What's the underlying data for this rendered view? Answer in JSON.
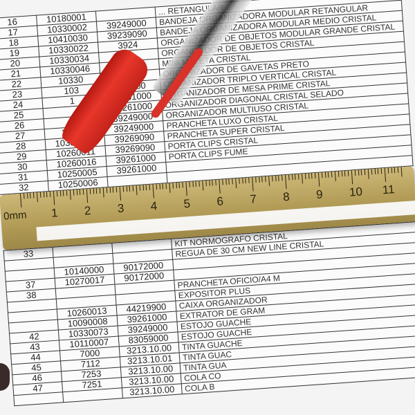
{
  "table": {
    "rows": [
      {
        "n": "16",
        "code": "10180001",
        "ncm": "",
        "desc": "... retangular ..."
      },
      {
        "n": "17",
        "code": "10330002",
        "ncm": "39249000",
        "desc": "Bandeja organizadora modular retangular"
      },
      {
        "n": "18",
        "code": "10410030",
        "ncm": "39239090",
        "desc": "Bandeja organizadora modular medio cristal"
      },
      {
        "n": "19",
        "code": "10330022",
        "ncm": "3924",
        "desc": "Organizador de objetos modular grande cristal"
      },
      {
        "n": "20",
        "code": "10330034",
        "ncm": "39",
        "desc": "Organizador de objetos cristal"
      },
      {
        "n": "21",
        "code": "10330046",
        "ncm": "",
        "desc": "Mini maleta cristal"
      },
      {
        "n": "22",
        "code": "10330",
        "ncm": "1000",
        "desc": "Organizador de gavetas preto"
      },
      {
        "n": "23",
        "code": "103",
        "ncm": "261000",
        "desc": "Organizador triplo vertical cristal"
      },
      {
        "n": "24",
        "code": "1",
        "ncm": "39261000",
        "desc": "Organizador de mesa prime cristal"
      },
      {
        "n": "25",
        "code": "",
        "ncm": "39261000",
        "desc": "Organizador diagonal cristal selado"
      },
      {
        "n": "26",
        "code": "38",
        "ncm": "39249000",
        "desc": "Organizador multiuso cristal"
      },
      {
        "n": "27",
        "code": "30018",
        "ncm": "39249000",
        "desc": "Prancheta luxo cristal"
      },
      {
        "n": "28",
        "code": "10330068",
        "ncm": "39269090",
        "desc": "Prancheta super cristal"
      },
      {
        "n": "29",
        "code": "10260011",
        "ncm": "39269090",
        "desc": "Porta clips cristal"
      },
      {
        "n": "30",
        "code": "10260016",
        "ncm": "39261000",
        "desc": "Porta clips fume"
      },
      {
        "n": "31",
        "code": "10250005",
        "ncm": "39261000",
        "desc": ""
      },
      {
        "n": "32",
        "code": "10250006",
        "ncm": "",
        "desc": ""
      },
      {
        "n": "33",
        "code": "",
        "ncm": "",
        "desc": "Kit normografo cristal"
      },
      {
        "n": "",
        "code": "",
        "ncm": "",
        "desc": "Regua de 30 cm new line cristal"
      },
      {
        "n": "",
        "code": "10140000",
        "ncm": "90172000",
        "desc": ""
      },
      {
        "n": "37",
        "code": "10270017",
        "ncm": "90172000",
        "desc": ""
      },
      {
        "n": "38",
        "code": "",
        "ncm": "",
        "desc": "Prancheta oficio/A4 M"
      },
      {
        "n": "",
        "code": "",
        "ncm": "",
        "desc": "Expositor plus"
      },
      {
        "n": "",
        "code": "10260013",
        "ncm": "44219900",
        "desc": "Caixa organizador"
      },
      {
        "n": "",
        "code": "10090008",
        "ncm": "39261000",
        "desc": "Extrator de gram"
      },
      {
        "n": "42",
        "code": "10330073",
        "ncm": "39249000",
        "desc": "Estojo guache"
      },
      {
        "n": "43",
        "code": "10110007",
        "ncm": "83059000",
        "desc": "Estojo guache"
      },
      {
        "n": "44",
        "code": "7000",
        "ncm": "3213.10.00",
        "desc": "Tinta guache"
      },
      {
        "n": "45",
        "code": "7112",
        "ncm": "3213.10.01",
        "desc": "Tinta guac"
      },
      {
        "n": "46",
        "code": "7253",
        "ncm": "3213.10.00",
        "desc": "Tinta gua"
      },
      {
        "n": "47",
        "code": "7251",
        "ncm": "3213.10.00",
        "desc": "Cola co"
      },
      {
        "n": "",
        "code": "",
        "ncm": "3213.10.00",
        "desc": "Cola b"
      }
    ]
  },
  "ruler": {
    "unit": "mm",
    "zero": "0",
    "numbers": [
      "1",
      "2",
      "3",
      "4",
      "5",
      "6",
      "7",
      "8",
      "9",
      "10",
      "11"
    ],
    "color": "#b09a55"
  },
  "pen": {
    "cap_color": "#e8362b"
  }
}
